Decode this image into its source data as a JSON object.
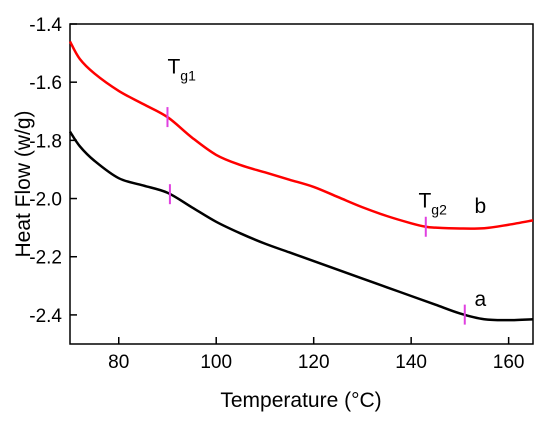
{
  "chart_data": {
    "type": "line",
    "title": "",
    "xlabel": "Temperature (°C)",
    "ylabel": "Heat Flow (w/g)",
    "xlim": [
      70,
      165
    ],
    "ylim": [
      -2.5,
      -1.4
    ],
    "xticks": [
      80,
      100,
      120,
      140,
      160
    ],
    "yticks": [
      -2.4,
      -2.2,
      -2.0,
      -1.8,
      -1.6,
      -1.4
    ],
    "xtick_labels": [
      "80",
      "100",
      "120",
      "140",
      "160"
    ],
    "ytick_labels": [
      "-2.4",
      "-2.2",
      "-2.0",
      "-1.8",
      "-1.6",
      "-1.4"
    ],
    "grid": false,
    "legend": "none",
    "series": [
      {
        "label": "a",
        "color": "#000000",
        "x": [
          70,
          72,
          75,
          80,
          85,
          90,
          95,
          100,
          105,
          110,
          115,
          120,
          125,
          130,
          135,
          140,
          145,
          150,
          155,
          160,
          165
        ],
        "y": [
          -1.77,
          -1.82,
          -1.87,
          -1.93,
          -1.955,
          -1.98,
          -2.03,
          -2.08,
          -2.12,
          -2.155,
          -2.185,
          -2.215,
          -2.245,
          -2.275,
          -2.305,
          -2.335,
          -2.365,
          -2.395,
          -2.415,
          -2.418,
          -2.415
        ],
        "marker_x": [
          90.5,
          151
        ]
      },
      {
        "label": "b",
        "color": "#ff0000",
        "x": [
          70,
          72,
          75,
          80,
          85,
          90,
          95,
          100,
          105,
          110,
          115,
          120,
          125,
          130,
          135,
          140,
          143,
          145,
          150,
          155,
          160,
          165
        ],
        "y": [
          -1.46,
          -1.52,
          -1.57,
          -1.63,
          -1.675,
          -1.72,
          -1.79,
          -1.85,
          -1.885,
          -1.91,
          -1.935,
          -1.96,
          -1.995,
          -2.03,
          -2.06,
          -2.085,
          -2.097,
          -2.1,
          -2.103,
          -2.102,
          -2.09,
          -2.075
        ],
        "marker_x": [
          90,
          143
        ]
      }
    ],
    "annotations": [
      {
        "base": "T",
        "sub": "g1",
        "x": 90,
        "y": -1.57
      },
      {
        "base": "T",
        "sub": "g2",
        "x": 141.5,
        "y": -2.03
      },
      {
        "text": "b",
        "x": 153,
        "y": -2.05
      },
      {
        "text": "a",
        "x": 153,
        "y": -2.37
      }
    ],
    "marker_color": "#e040e0"
  }
}
